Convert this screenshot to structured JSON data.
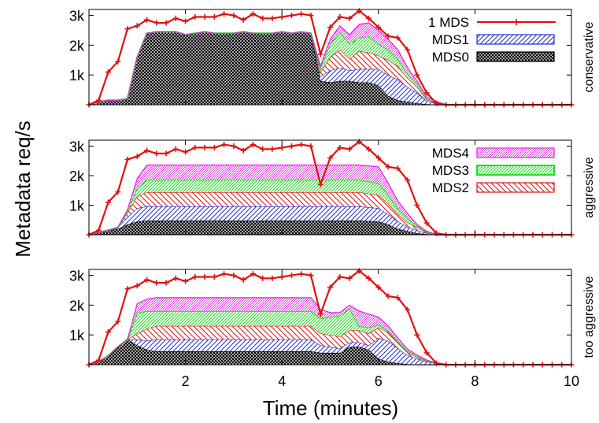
{
  "figure": {
    "ylabel": "Metadata req/s",
    "xlabel": "Time (minutes)"
  },
  "chart_data": {
    "type": "area",
    "xlim": [
      0,
      10
    ],
    "ylim": [
      0,
      3200
    ],
    "xticks": [
      2,
      4,
      6,
      8,
      10
    ],
    "xtick_labels": [
      "2",
      "4",
      "6",
      "8",
      "10"
    ],
    "yticks": [
      1000,
      2000,
      3000
    ],
    "ytick_labels": [
      "1k",
      "2k",
      "3k"
    ],
    "grid": false,
    "reference_series": {
      "name": "1 MDS",
      "x": [
        0,
        0.2,
        0.4,
        0.6,
        0.8,
        1.0,
        1.2,
        1.4,
        1.6,
        1.8,
        2.0,
        2.2,
        2.4,
        2.6,
        2.8,
        3.0,
        3.2,
        3.4,
        3.6,
        3.8,
        4.0,
        4.2,
        4.4,
        4.6,
        4.8,
        5.0,
        5.2,
        5.4,
        5.6,
        5.8,
        6.0,
        6.2,
        6.4,
        6.6,
        6.8,
        7.0,
        7.2,
        7.4,
        7.6,
        7.8,
        8.0,
        8.2,
        8.4,
        8.6,
        8.8,
        9.0,
        9.2,
        9.4,
        9.6,
        9.8,
        10.0
      ],
      "y": [
        0,
        150,
        1100,
        1450,
        2550,
        2650,
        2850,
        2750,
        2750,
        2900,
        2800,
        2950,
        2950,
        2950,
        3050,
        3000,
        2850,
        3050,
        2900,
        2900,
        2950,
        3000,
        3050,
        3000,
        1700,
        2600,
        2950,
        2900,
        3150,
        2900,
        2600,
        2300,
        2250,
        1850,
        1000,
        400,
        50,
        0,
        0,
        0,
        0,
        0,
        0,
        0,
        0,
        0,
        0,
        0,
        0,
        0,
        0
      ]
    },
    "panels": [
      {
        "label": "conservative",
        "legend": [
          "1 MDS",
          "MDS1",
          "MDS0"
        ],
        "legend_position": "top-right",
        "series": [
          {
            "name": "MDS0",
            "x": [
              0,
              0.2,
              0.4,
              0.6,
              0.8,
              1.0,
              1.2,
              1.4,
              1.6,
              1.8,
              2.0,
              2.2,
              2.4,
              2.6,
              2.8,
              3.0,
              3.2,
              3.4,
              3.6,
              3.8,
              4.0,
              4.2,
              4.4,
              4.6,
              4.8,
              5.0,
              5.2,
              5.4,
              5.6,
              5.8,
              6.0,
              6.2,
              6.4,
              6.6,
              6.8,
              7.0,
              7.2,
              7.4,
              7.6,
              10.0
            ],
            "y": [
              0,
              100,
              150,
              150,
              200,
              1600,
              2400,
              2450,
              2450,
              2450,
              2350,
              2400,
              2450,
              2400,
              2400,
              2400,
              2450,
              2400,
              2400,
              2400,
              2450,
              2400,
              2450,
              2400,
              800,
              750,
              800,
              800,
              750,
              750,
              650,
              300,
              150,
              100,
              50,
              20,
              0,
              0,
              0,
              0
            ]
          },
          {
            "name": "MDS1",
            "x": [
              0,
              4.6,
              4.8,
              5.0,
              5.2,
              5.4,
              5.6,
              5.8,
              6.0,
              6.2,
              6.4,
              6.6,
              6.8,
              7.0,
              7.2,
              7.4,
              10.0
            ],
            "y": [
              0,
              0,
              150,
              400,
              450,
              350,
              450,
              450,
              550,
              700,
              700,
              500,
              350,
              100,
              50,
              0,
              0
            ]
          },
          {
            "name": "MDS2",
            "x": [
              0,
              4.6,
              4.8,
              5.0,
              5.2,
              5.4,
              5.6,
              5.8,
              6.0,
              6.2,
              6.4,
              6.6,
              6.8,
              7.0,
              7.2,
              7.4,
              10.0
            ],
            "y": [
              0,
              0,
              150,
              450,
              600,
              400,
              600,
              550,
              450,
              500,
              450,
              300,
              200,
              50,
              20,
              0,
              0
            ]
          },
          {
            "name": "MDS3",
            "x": [
              0,
              4.6,
              4.8,
              5.0,
              5.2,
              5.4,
              5.6,
              5.8,
              6.0,
              6.2,
              6.4,
              6.6,
              6.8,
              7.0,
              7.2,
              7.4,
              10.0
            ],
            "y": [
              0,
              0,
              150,
              450,
              600,
              500,
              450,
              550,
              400,
              350,
              250,
              150,
              100,
              40,
              20,
              0,
              0
            ]
          },
          {
            "name": "MDS4",
            "x": [
              0,
              4.6,
              4.8,
              5.0,
              5.2,
              5.4,
              5.6,
              5.8,
              6.0,
              6.2,
              6.4,
              6.6,
              6.8,
              7.0,
              7.2,
              7.4,
              10.0
            ],
            "y": [
              0,
              0,
              50,
              150,
              200,
              300,
              450,
              450,
              450,
              350,
              300,
              200,
              100,
              50,
              20,
              0,
              0
            ]
          }
        ]
      },
      {
        "label": "aggressive",
        "legend": [
          "MDS4",
          "MDS3",
          "MDS2"
        ],
        "legend_position": "top-right",
        "series": [
          {
            "name": "MDS0",
            "x": [
              0,
              0.2,
              0.4,
              0.6,
              0.8,
              1.0,
              1.2,
              5.6,
              6.0,
              6.2,
              6.4,
              6.6,
              6.8,
              7.0,
              7.2,
              7.4,
              10.0
            ],
            "y": [
              0,
              80,
              150,
              200,
              350,
              450,
              480,
              480,
              450,
              350,
              200,
              120,
              50,
              20,
              0,
              0,
              0
            ]
          },
          {
            "name": "MDS1",
            "x": [
              0,
              0.2,
              0.4,
              0.6,
              0.8,
              1.0,
              1.2,
              5.6,
              6.0,
              6.2,
              6.4,
              6.6,
              6.8,
              7.0,
              7.2,
              7.4,
              10.0
            ],
            "y": [
              0,
              0,
              0,
              50,
              250,
              450,
              480,
              480,
              450,
              350,
              250,
              150,
              100,
              30,
              0,
              0,
              0
            ]
          },
          {
            "name": "MDS2",
            "x": [
              0,
              0.2,
              0.4,
              0.6,
              0.8,
              1.0,
              1.2,
              5.6,
              6.0,
              6.2,
              6.4,
              6.6,
              6.8,
              7.0,
              7.2,
              7.4,
              10.0
            ],
            "y": [
              0,
              0,
              0,
              0,
              150,
              400,
              480,
              480,
              450,
              350,
              250,
              150,
              100,
              30,
              0,
              0,
              0
            ]
          },
          {
            "name": "MDS3",
            "x": [
              0,
              0.2,
              0.4,
              0.6,
              0.8,
              1.0,
              1.2,
              5.6,
              6.0,
              6.2,
              6.4,
              6.6,
              6.8,
              7.0,
              7.2,
              7.4,
              10.0
            ],
            "y": [
              0,
              0,
              0,
              0,
              50,
              300,
              420,
              420,
              400,
              300,
              200,
              150,
              50,
              20,
              0,
              0,
              0
            ]
          },
          {
            "name": "MDS4",
            "x": [
              0,
              0.2,
              0.4,
              0.6,
              0.8,
              1.0,
              1.2,
              5.6,
              6.0,
              6.2,
              6.4,
              6.6,
              6.8,
              7.0,
              7.2,
              7.4,
              10.0
            ],
            "y": [
              0,
              0,
              0,
              0,
              50,
              300,
              500,
              500,
              550,
              400,
              250,
              150,
              50,
              20,
              0,
              0,
              0
            ]
          }
        ]
      },
      {
        "label": "too aggressive",
        "legend": [],
        "legend_position": "none",
        "series": [
          {
            "name": "MDS0",
            "x": [
              0,
              0.2,
              0.4,
              0.6,
              0.8,
              1.0,
              1.2,
              1.4,
              1.6,
              2.0,
              3.0,
              4.0,
              4.6,
              4.8,
              5.0,
              5.2,
              5.4,
              5.6,
              5.8,
              6.0,
              6.2,
              6.4,
              6.6,
              6.8,
              7.0,
              7.2,
              7.4,
              10.0
            ],
            "y": [
              0,
              100,
              300,
              600,
              850,
              650,
              500,
              450,
              450,
              450,
              450,
              450,
              450,
              400,
              400,
              400,
              600,
              600,
              500,
              200,
              100,
              50,
              20,
              0,
              0,
              0,
              0,
              0
            ]
          },
          {
            "name": "MDS1",
            "x": [
              0,
              0.2,
              0.4,
              0.6,
              0.8,
              1.0,
              1.2,
              1.4,
              1.6,
              2.0,
              3.0,
              4.0,
              4.6,
              4.8,
              5.0,
              5.2,
              5.4,
              5.6,
              5.8,
              6.0,
              6.2,
              6.4,
              6.6,
              6.8,
              7.0,
              7.2,
              7.4,
              10.0
            ],
            "y": [
              0,
              0,
              0,
              0,
              0,
              200,
              300,
              400,
              400,
              400,
              400,
              400,
              400,
              250,
              200,
              150,
              150,
              150,
              150,
              700,
              700,
              500,
              300,
              200,
              100,
              50,
              0,
              0
            ]
          },
          {
            "name": "MDS2",
            "x": [
              0,
              0.2,
              0.4,
              0.6,
              0.8,
              1.0,
              1.2,
              1.4,
              1.6,
              2.0,
              3.0,
              4.0,
              4.6,
              4.8,
              5.0,
              5.2,
              5.4,
              5.6,
              5.8,
              6.0,
              6.2,
              6.4,
              6.6,
              6.8,
              7.0,
              7.2,
              7.4,
              10.0
            ],
            "y": [
              0,
              0,
              0,
              0,
              0,
              200,
              400,
              450,
              450,
              450,
              450,
              450,
              450,
              400,
              400,
              400,
              400,
              400,
              400,
              350,
              300,
              200,
              100,
              50,
              20,
              0,
              0,
              0
            ]
          },
          {
            "name": "MDS3",
            "x": [
              0,
              0.2,
              0.4,
              0.6,
              0.8,
              1.0,
              1.2,
              1.4,
              1.6,
              2.0,
              3.0,
              4.0,
              4.6,
              4.8,
              5.0,
              5.2,
              5.4,
              5.6,
              5.8,
              6.0,
              6.2,
              6.4,
              6.6,
              6.8,
              7.0,
              7.2,
              7.4,
              10.0
            ],
            "y": [
              0,
              0,
              0,
              0,
              0,
              700,
              600,
              500,
              500,
              500,
              500,
              500,
              500,
              500,
              600,
              700,
              750,
              150,
              200,
              100,
              50,
              50,
              50,
              50,
              20,
              0,
              0,
              0
            ]
          },
          {
            "name": "MDS4",
            "x": [
              0,
              0.2,
              0.4,
              0.6,
              0.8,
              1.0,
              1.2,
              1.4,
              1.6,
              2.0,
              3.0,
              4.0,
              4.6,
              4.8,
              5.0,
              5.2,
              5.4,
              5.6,
              5.8,
              6.0,
              6.2,
              6.4,
              6.6,
              6.8,
              7.0,
              7.2,
              7.4,
              10.0
            ],
            "y": [
              0,
              0,
              0,
              0,
              0,
              300,
              400,
              450,
              450,
              450,
              450,
              450,
              450,
              300,
              150,
              100,
              100,
              500,
              450,
              250,
              150,
              100,
              50,
              30,
              20,
              0,
              0,
              0
            ]
          }
        ]
      }
    ]
  },
  "colors": {
    "reference": "#e01010",
    "MDS0": "#000000",
    "MDS1": "#2030d0",
    "MDS2": "#e01010",
    "MDS3": "#20e020",
    "MDS4": "#e020e0"
  }
}
